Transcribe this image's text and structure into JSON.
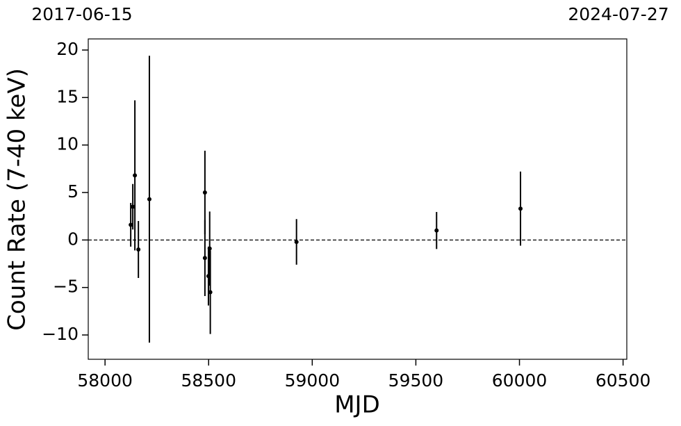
{
  "chart_data": {
    "type": "errorbar",
    "xlabel": "MJD",
    "ylabel": "Count Rate (7-40 keV)",
    "top_labels": [
      "2017-06-15",
      "2024-07-27"
    ],
    "x": [
      58124,
      58134,
      58144,
      58161,
      58214,
      58482,
      58482,
      58499,
      58505,
      58508,
      58924,
      59600,
      60005
    ],
    "values": [
      1.6,
      3.5,
      6.8,
      -1.0,
      4.3,
      5.0,
      -1.9,
      -3.8,
      -0.9,
      -5.5,
      -0.2,
      1.0,
      3.3
    ],
    "errors": [
      2.3,
      2.4,
      7.9,
      3.0,
      15.1,
      4.4,
      4.0,
      3.1,
      3.9,
      4.4,
      2.4,
      1.95,
      3.9
    ],
    "color": "#000000",
    "reference_line": 0,
    "xlim": [
      57919,
      60518
    ],
    "ylim": [
      -12.56,
      21.17
    ],
    "xticks": [
      58000,
      58500,
      59000,
      59500,
      60000,
      60500
    ],
    "yticks": [
      {
        "value": -10,
        "label": "−10"
      },
      {
        "value": -5,
        "label": "−5"
      },
      0,
      5,
      10,
      15,
      20
    ]
  }
}
